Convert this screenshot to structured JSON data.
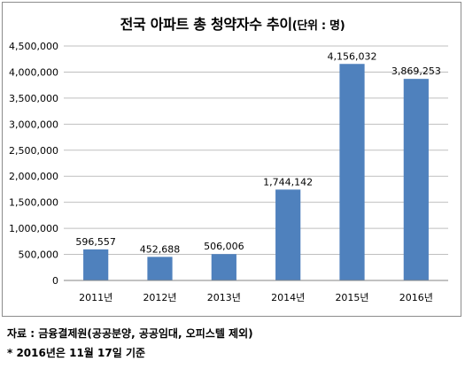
{
  "title": "전국 아파트 총 청약자수 추이",
  "unit_label": "(단위 : 명)",
  "colors": {
    "bar": "#4f81bd",
    "grid": "#bfbfbf",
    "axis": "#868686"
  },
  "chart_data": {
    "type": "bar",
    "title": "전국 아파트 총 청약자수 추이",
    "xlabel": "",
    "ylabel": "",
    "categories": [
      "2011년",
      "2012년",
      "2013년",
      "2014년",
      "2015년",
      "2016년"
    ],
    "values": [
      596557,
      452688,
      506006,
      1744142,
      4156032,
      3869253
    ],
    "value_labels": [
      "596,557",
      "452,688",
      "506,006",
      "1,744,142",
      "4,156,032",
      "3,869,253"
    ],
    "ylim": [
      0,
      4500000
    ],
    "yticks": [
      "0",
      "500,000",
      "1,000,000",
      "1,500,000",
      "2,000,000",
      "2,500,000",
      "3,000,000",
      "3,500,000",
      "4,000,000",
      "4,500,000"
    ],
    "grid": true,
    "legend": "none"
  },
  "notes": {
    "source": "자료 : 금융결제원(공공분양, 공공임대, 오피스텔 제외)",
    "footnote": "* 2016년은 11월 17일 기준"
  }
}
